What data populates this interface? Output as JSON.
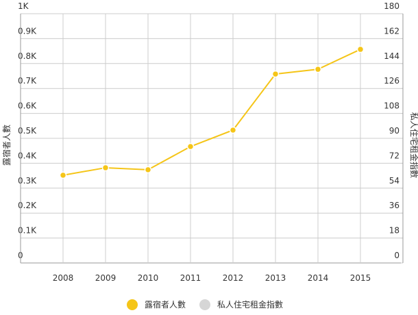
{
  "chart_data": {
    "type": "line",
    "categories": [
      "2008",
      "2009",
      "2010",
      "2011",
      "2012",
      "2013",
      "2014",
      "2015"
    ],
    "series": [
      {
        "name": "露宿者人數",
        "color": "#f5c518",
        "values": [
          352,
          382,
          374,
          467,
          533,
          758,
          777,
          857
        ]
      },
      {
        "name": "私人住宅租金指數",
        "color": "#d6d6d6",
        "axis": "y2",
        "values": [
          null,
          null,
          null,
          null,
          null,
          null,
          null,
          null
        ]
      }
    ],
    "ylabel": "露宿者人數",
    "y2label": "私人住宅租金指數",
    "ylim": [
      0,
      1000
    ],
    "yticks": [
      0,
      {
        "value": 100,
        "label": "0.1K"
      },
      {
        "value": 200,
        "label": "0.2K"
      },
      {
        "value": 300,
        "label": "0.3K"
      },
      {
        "value": 400,
        "label": "0.4K"
      },
      {
        "value": 500,
        "label": "0.5K"
      },
      {
        "value": 600,
        "label": "0.6K"
      },
      {
        "value": 700,
        "label": "0.7K"
      },
      {
        "value": 800,
        "label": "0.8K"
      },
      {
        "value": 900,
        "label": "0.9K"
      },
      {
        "value": 1000,
        "label": "1K"
      }
    ],
    "y2lim": [
      0,
      180
    ],
    "y2ticks": [
      0,
      18,
      36,
      54,
      72,
      90,
      108,
      126,
      144,
      162,
      180
    ],
    "grid": true,
    "legend": "bottom"
  }
}
